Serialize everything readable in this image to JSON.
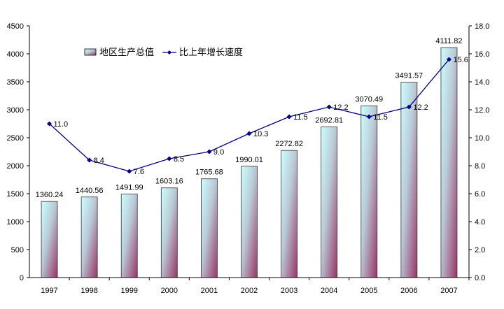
{
  "chart_data": {
    "type": "bar+line",
    "categories": [
      "1997",
      "1998",
      "1999",
      "2000",
      "2001",
      "2002",
      "2003",
      "2004",
      "2005",
      "2006",
      "2007"
    ],
    "series": [
      {
        "name": "地区生产总值",
        "type": "bar",
        "axis": "left",
        "values": [
          1360.24,
          1440.56,
          1491.99,
          1603.16,
          1765.68,
          1990.01,
          2272.82,
          2692.81,
          3070.49,
          3491.57,
          4111.82
        ],
        "labels": [
          "1360.24",
          "1440.56",
          "1491.99",
          "1603.16",
          "1765.68",
          "1990.01",
          "2272.82",
          "2692.81",
          "3070.49",
          "3491.57",
          "4111.82"
        ]
      },
      {
        "name": "比上年增长速度",
        "type": "line",
        "axis": "right",
        "values": [
          11.0,
          8.4,
          7.6,
          8.5,
          9.0,
          10.3,
          11.5,
          12.2,
          11.5,
          12.2,
          15.6
        ],
        "labels": [
          "11.0",
          "8.4",
          "7.6",
          "8.5",
          "9.0",
          "10.3",
          "11.5",
          "12.2",
          "11.5",
          "12.2",
          "15.6"
        ]
      }
    ],
    "y_left": {
      "ylim": [
        0,
        4500
      ],
      "ticks": [
        "0",
        "500",
        "1000",
        "1500",
        "2000",
        "2500",
        "3000",
        "3500",
        "4000",
        "4500"
      ]
    },
    "y_right": {
      "ylim": [
        0,
        18
      ],
      "ticks": [
        "0.0",
        "2.0",
        "4.0",
        "6.0",
        "8.0",
        "10.0",
        "12.0",
        "14.0",
        "16.0",
        "18.0"
      ]
    },
    "grid": false,
    "legend": "top-left",
    "colors": {
      "bar_top": "#ccffff",
      "bar_bottom": "#993366",
      "line": "#000080"
    }
  }
}
